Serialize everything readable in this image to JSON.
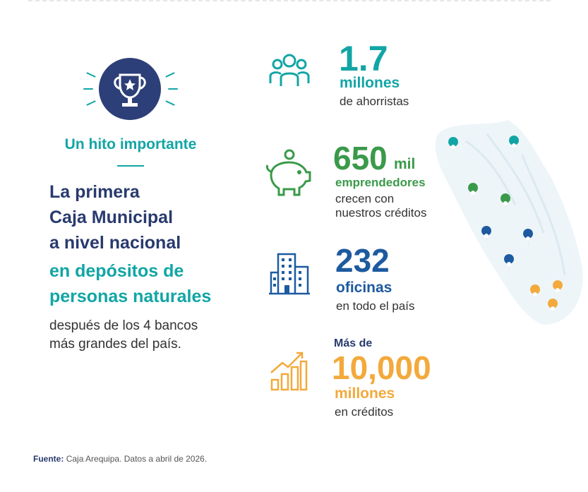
{
  "left": {
    "icon": "trophy-icon",
    "milestone_title": "Un hito importante",
    "headline_lines": [
      "La primera",
      "Caja Municipal",
      "a nivel nacional"
    ],
    "highlight_lines": [
      "en depósitos de",
      "personas naturales"
    ],
    "description_lines": [
      "después de los 4 bancos",
      "más grandes del país."
    ]
  },
  "stats": {
    "savers": {
      "icon": "people-icon",
      "value": "1.7",
      "unit": "millones",
      "label": "de ahorristas",
      "color": "#12a5a5"
    },
    "entrepreneurs": {
      "icon": "piggy-bank-icon",
      "value": "650",
      "value_suffix": "mil",
      "unit": "emprendedores",
      "label_lines": [
        "crecen con",
        "nuestros créditos"
      ],
      "color": "#3a9a4a"
    },
    "offices": {
      "icon": "building-icon",
      "value": "232",
      "unit": "oficinas",
      "label": "en todo el país",
      "color": "#1d5aa0"
    },
    "credits": {
      "icon": "growth-chart-icon",
      "prefix": "Más de",
      "value": "10,000",
      "unit": "millones",
      "label": "en créditos",
      "color": "#f3a93b"
    }
  },
  "map": {
    "pins": [
      "teal",
      "teal",
      "green",
      "green",
      "blue",
      "blue",
      "blue",
      "orange",
      "orange",
      "orange"
    ]
  },
  "footer": {
    "source_label": "Fuente:",
    "source_text": "Caja Arequipa. Datos a abril de 2026."
  }
}
